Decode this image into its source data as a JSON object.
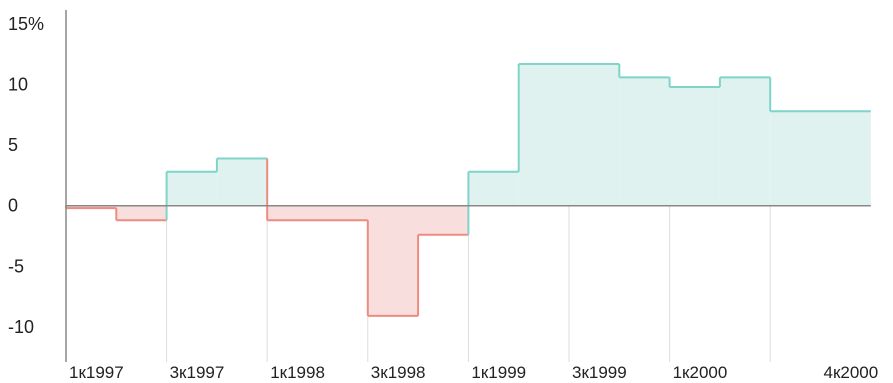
{
  "chart_data": {
    "type": "area",
    "step": "post",
    "x": [
      "1к1997",
      "2к1997",
      "3к1997",
      "4к1997",
      "1к1998",
      "2к1998",
      "3к1998",
      "4к1998",
      "1к1999",
      "2к1999",
      "3к1999",
      "4к1999",
      "1к2000",
      "2к2000",
      "3к2000",
      "4к2000"
    ],
    "values": [
      -0.2,
      -1.2,
      2.8,
      3.9,
      -1.2,
      -1.2,
      -9.1,
      -2.4,
      2.8,
      11.7,
      11.7,
      10.6,
      9.8,
      10.6,
      7.8,
      7.8
    ],
    "xticks": [
      "1к1997",
      "3к1997",
      "1к1998",
      "3к1998",
      "1к1999",
      "3к1999",
      "1к2000",
      "4к2000"
    ],
    "yticks": [
      "15%",
      "10",
      "5",
      "0",
      "-5",
      "-10"
    ],
    "ytick_values": [
      15,
      10,
      5,
      0,
      -5,
      -10
    ],
    "ylim": [
      -11.5,
      15.5
    ],
    "grid": "vertical",
    "colors": {
      "positive_line": "#7fd4ca",
      "positive_fill": "#dff2ef",
      "negative_line": "#ee8b80",
      "negative_fill": "#f8dedd",
      "axis": "#888888",
      "grid": "#dddddd"
    }
  }
}
